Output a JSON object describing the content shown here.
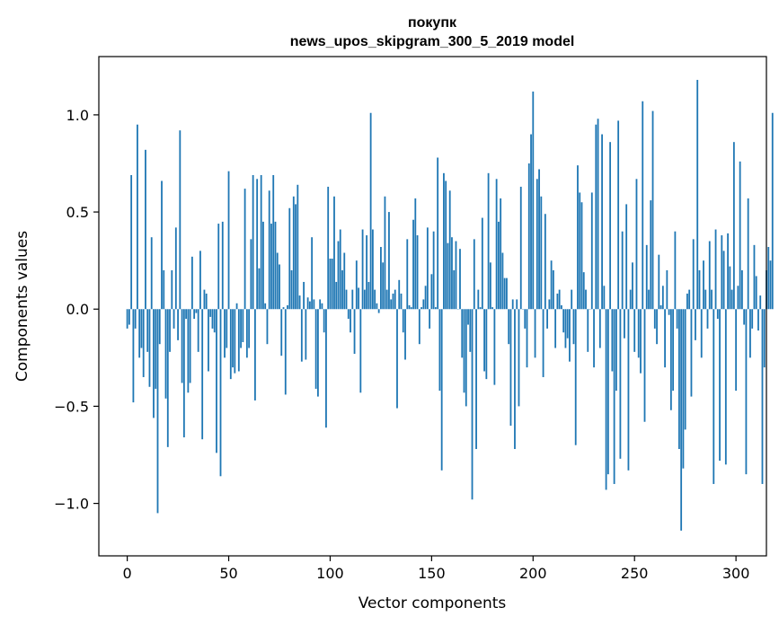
{
  "chart_data": {
    "type": "bar",
    "title_lines": [
      "покупк",
      "news_upos_skipgram_300_5_2019 model"
    ],
    "xlabel": "Vector components",
    "ylabel": "Components values",
    "xlim": [
      -14,
      315
    ],
    "ylim": [
      -1.27,
      1.3
    ],
    "x_ticks": [
      0,
      50,
      100,
      150,
      200,
      250,
      300
    ],
    "x_tick_labels": [
      "0",
      "50",
      "100",
      "150",
      "200",
      "250",
      "300"
    ],
    "y_ticks": [
      -1.0,
      -0.5,
      0.0,
      0.5,
      1.0
    ],
    "y_tick_labels": [
      "−1.0",
      "−0.5",
      "0.0",
      "0.5",
      "1.0"
    ],
    "bar_color": "#1f77b4",
    "grid": false,
    "values": [
      -0.1,
      -0.08,
      0.69,
      -0.48,
      -0.1,
      0.95,
      -0.25,
      -0.2,
      -0.35,
      0.82,
      -0.22,
      -0.4,
      0.37,
      -0.56,
      -0.41,
      -1.05,
      -0.18,
      0.66,
      0.2,
      -0.46,
      -0.71,
      -0.22,
      0.2,
      -0.1,
      0.42,
      -0.16,
      0.92,
      -0.38,
      -0.66,
      -0.05,
      -0.43,
      -0.38,
      0.27,
      -0.05,
      -0.02,
      -0.22,
      0.3,
      -0.67,
      0.1,
      0.08,
      -0.32,
      -0.04,
      -0.1,
      -0.12,
      -0.74,
      0.44,
      -0.86,
      0.45,
      -0.25,
      -0.2,
      0.71,
      -0.36,
      -0.3,
      -0.33,
      0.03,
      -0.32,
      -0.2,
      -0.17,
      0.62,
      -0.25,
      -0.2,
      0.36,
      0.69,
      -0.47,
      0.67,
      0.21,
      0.69,
      0.45,
      0.03,
      -0.18,
      0.61,
      0.44,
      0.69,
      0.45,
      0.29,
      0.23,
      -0.24,
      0.01,
      -0.44,
      0.02,
      0.52,
      0.2,
      0.58,
      0.54,
      0.64,
      0.07,
      -0.27,
      0.14,
      -0.26,
      0.06,
      0.04,
      0.37,
      0.05,
      -0.41,
      -0.45,
      0.05,
      0.03,
      -0.12,
      -0.61,
      0.63,
      0.26,
      0.26,
      0.58,
      0.14,
      0.35,
      0.41,
      0.2,
      0.29,
      0.1,
      -0.05,
      -0.12,
      0.1,
      -0.23,
      0.25,
      0.11,
      -0.43,
      0.41,
      0.1,
      0.38,
      0.14,
      1.01,
      0.41,
      0.1,
      0.03,
      -0.02,
      0.32,
      0.24,
      0.58,
      0.1,
      0.5,
      0.05,
      0.08,
      0.1,
      -0.51,
      0.15,
      0.08,
      -0.12,
      -0.26,
      0.36,
      0.02,
      0.01,
      0.46,
      0.57,
      0.38,
      -0.18,
      0.01,
      0.05,
      0.12,
      0.42,
      -0.1,
      0.18,
      0.4,
      0.01,
      0.78,
      -0.42,
      -0.83,
      0.7,
      0.66,
      0.34,
      0.61,
      0.37,
      0.2,
      0.35,
      0.0,
      0.31,
      -0.25,
      -0.43,
      -0.5,
      -0.08,
      -0.22,
      -0.98,
      0.36,
      -0.72,
      0.1,
      0.01,
      0.47,
      -0.32,
      -0.36,
      0.7,
      0.24,
      0.01,
      -0.39,
      0.67,
      0.45,
      0.57,
      0.29,
      0.16,
      0.16,
      -0.18,
      -0.6,
      0.05,
      -0.72,
      0.05,
      -0.5,
      0.63,
      0.0,
      -0.1,
      -0.3,
      0.75,
      0.9,
      1.12,
      -0.25,
      0.67,
      0.72,
      0.58,
      -0.35,
      0.49,
      -0.1,
      0.05,
      0.25,
      0.2,
      -0.2,
      0.08,
      0.1,
      0.02,
      -0.12,
      -0.2,
      -0.15,
      -0.27,
      0.1,
      -0.18,
      -0.7,
      0.74,
      0.6,
      0.55,
      0.19,
      0.1,
      -0.22,
      0.0,
      0.6,
      -0.3,
      0.95,
      0.98,
      -0.2,
      0.9,
      0.12,
      -0.93,
      -0.85,
      0.86,
      -0.32,
      -0.9,
      -0.42,
      0.97,
      -0.77,
      0.4,
      -0.15,
      0.54,
      -0.83,
      0.1,
      0.24,
      -0.22,
      0.67,
      -0.25,
      -0.33,
      1.07,
      -0.58,
      0.33,
      0.1,
      0.56,
      1.02,
      -0.1,
      -0.18,
      0.28,
      0.02,
      0.12,
      -0.3,
      0.2,
      -0.03,
      -0.52,
      -0.42,
      0.4,
      -0.1,
      -0.72,
      -1.14,
      -0.82,
      -0.62,
      0.08,
      0.1,
      -0.45,
      0.36,
      -0.16,
      1.18,
      0.2,
      -0.25,
      0.25,
      0.1,
      -0.1,
      0.35,
      0.1,
      -0.9,
      0.41,
      -0.05,
      -0.78,
      0.38,
      0.3,
      -0.8,
      0.39,
      0.22,
      0.1,
      0.86,
      -0.42,
      0.12,
      0.76,
      0.2,
      -0.08,
      -0.85,
      0.57,
      -0.25,
      -0.1,
      0.33,
      0.17,
      -0.11,
      0.07,
      -0.9,
      -0.3,
      0.2,
      0.32,
      0.25,
      1.01
    ]
  }
}
